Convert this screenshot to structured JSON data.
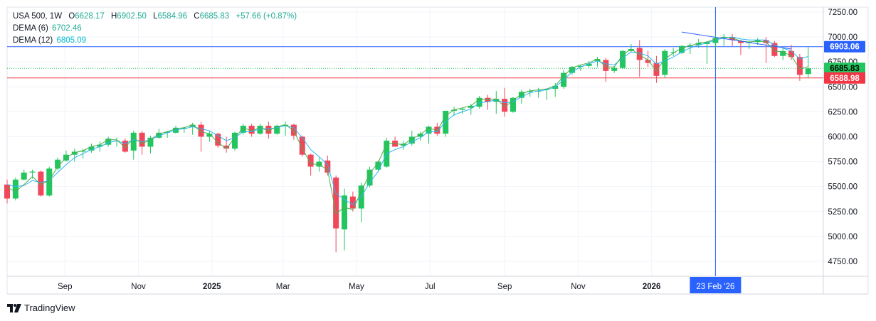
{
  "legend": {
    "symbol": "USA 500",
    "interval": "1W",
    "open_label": "O",
    "open": "6628.17",
    "high_label": "H",
    "high": "6902.50",
    "low_label": "L",
    "low": "6584.96",
    "close_label": "C",
    "close": "6685.83",
    "change": "+57.66 (+0.87%)",
    "dema6_label": "DEMA (6)",
    "dema6_value": "6702.46",
    "dema12_label": "DEMA (12)",
    "dema12_value": "6805.09"
  },
  "brand": {
    "name": "TradingView"
  },
  "colors": {
    "up": "#22c55e",
    "down": "#f0475a",
    "dema6": "#4caf50",
    "dema12": "#29b6f6",
    "hline_blue": "#2962ff",
    "hline_red": "#f23645",
    "trendline": "#2962ff"
  },
  "chart_data": {
    "type": "candlestick",
    "ylim": [
      4600,
      7300
    ],
    "y_ticks": [
      4750,
      5000,
      5250,
      5500,
      5750,
      6000,
      6250,
      6500,
      6750,
      7000,
      7250
    ],
    "y_tick_labels": [
      "4750.00",
      "5000.00",
      "5250.00",
      "5500.00",
      "5750.00",
      "6000.00",
      "6250.00",
      "6500.00",
      "6750.00",
      "7000.00",
      "7250.00"
    ],
    "x_ticks": [
      {
        "label": "Sep",
        "date": "2024-09-01",
        "bold": false
      },
      {
        "label": "Nov",
        "date": "2024-11-01",
        "bold": false
      },
      {
        "label": "2025",
        "date": "2025-01-01",
        "bold": true
      },
      {
        "label": "Mar",
        "date": "2025-03-01",
        "bold": false
      },
      {
        "label": "May",
        "date": "2025-05-01",
        "bold": false
      },
      {
        "label": "Jul",
        "date": "2025-07-01",
        "bold": false
      },
      {
        "label": "Sep",
        "date": "2025-09-01",
        "bold": false
      },
      {
        "label": "Nov",
        "date": "2025-11-01",
        "bold": false
      },
      {
        "label": "2026",
        "date": "2026-01-01",
        "bold": true
      }
    ],
    "first_candle_date": "2024-07-15",
    "candle_interval_days": 7,
    "candles": [
      [
        5520,
        5570,
        5330,
        5380
      ],
      [
        5380,
        5590,
        5360,
        5570
      ],
      [
        5570,
        5670,
        5560,
        5640
      ],
      [
        5640,
        5670,
        5580,
        5650
      ],
      [
        5650,
        5660,
        5400,
        5410
      ],
      [
        5410,
        5700,
        5400,
        5680
      ],
      [
        5680,
        5790,
        5660,
        5770
      ],
      [
        5760,
        5860,
        5750,
        5820
      ],
      [
        5820,
        5880,
        5750,
        5850
      ],
      [
        5850,
        5880,
        5780,
        5860
      ],
      [
        5860,
        5930,
        5840,
        5900
      ],
      [
        5900,
        5950,
        5850,
        5920
      ],
      [
        5920,
        6000,
        5900,
        5980
      ],
      [
        5960,
        5990,
        5900,
        5960
      ],
      [
        5960,
        5980,
        5840,
        5850
      ],
      [
        5860,
        6060,
        5770,
        6040
      ],
      [
        6040,
        6060,
        5820,
        5900
      ],
      [
        5900,
        6010,
        5830,
        5990
      ],
      [
        5990,
        6080,
        5980,
        6040
      ],
      [
        6040,
        6060,
        5990,
        6050
      ],
      [
        6040,
        6110,
        6030,
        6090
      ],
      [
        6080,
        6100,
        6040,
        6090
      ],
      [
        6100,
        6140,
        6020,
        6120
      ],
      [
        6120,
        6150,
        5850,
        6000
      ],
      [
        6000,
        6060,
        5950,
        6030
      ],
      [
        6030,
        6040,
        5890,
        5910
      ],
      [
        5910,
        6000,
        5840,
        5880
      ],
      [
        5880,
        6050,
        5860,
        6040
      ],
      [
        6040,
        6130,
        6020,
        6110
      ],
      [
        6110,
        6130,
        6000,
        6030
      ],
      [
        6030,
        6130,
        6020,
        6110
      ],
      [
        6110,
        6150,
        5980,
        6030
      ],
      [
        6030,
        6120,
        6020,
        6110
      ],
      [
        6110,
        6150,
        6010,
        6120
      ],
      [
        6120,
        6130,
        5970,
        6010
      ],
      [
        6000,
        6010,
        5800,
        5820
      ],
      [
        5820,
        5830,
        5610,
        5700
      ],
      [
        5700,
        5790,
        5650,
        5750
      ],
      [
        5760,
        5810,
        5610,
        5640
      ],
      [
        5590,
        5610,
        4840,
        5080
      ],
      [
        5070,
        5480,
        4860,
        5410
      ],
      [
        5400,
        5450,
        5250,
        5280
      ],
      [
        5280,
        5540,
        5140,
        5510
      ],
      [
        5510,
        5700,
        5490,
        5670
      ],
      [
        5670,
        5760,
        5660,
        5750
      ],
      [
        5700,
        5990,
        5690,
        5960
      ],
      [
        5960,
        6000,
        5900,
        5900
      ],
      [
        5910,
        5960,
        5870,
        5930
      ],
      [
        5930,
        6060,
        5910,
        6000
      ],
      [
        6000,
        6050,
        5960,
        6030
      ],
      [
        6030,
        6110,
        5930,
        6100
      ],
      [
        6100,
        6140,
        6010,
        6030
      ],
      [
        6030,
        6260,
        6000,
        6260
      ],
      [
        6260,
        6300,
        6210,
        6270
      ],
      [
        6270,
        6290,
        6230,
        6280
      ],
      [
        6290,
        6330,
        6220,
        6310
      ],
      [
        6300,
        6410,
        6280,
        6390
      ],
      [
        6390,
        6420,
        6270,
        6350
      ],
      [
        6350,
        6460,
        6230,
        6380
      ],
      [
        6380,
        6490,
        6200,
        6250
      ],
      [
        6250,
        6400,
        6240,
        6390
      ],
      [
        6390,
        6470,
        6330,
        6450
      ],
      [
        6450,
        6480,
        6400,
        6460
      ],
      [
        6460,
        6490,
        6390,
        6460
      ],
      [
        6470,
        6480,
        6370,
        6480
      ],
      [
        6480,
        6540,
        6400,
        6510
      ],
      [
        6500,
        6670,
        6480,
        6640
      ],
      [
        6640,
        6710,
        6620,
        6700
      ],
      [
        6700,
        6720,
        6660,
        6710
      ],
      [
        6710,
        6760,
        6690,
        6730
      ],
      [
        6760,
        6800,
        6700,
        6780
      ],
      [
        6770,
        6790,
        6550,
        6660
      ],
      [
        6660,
        6710,
        6640,
        6690
      ],
      [
        6690,
        6870,
        6680,
        6860
      ],
      [
        6860,
        6930,
        6850,
        6880
      ],
      [
        6890,
        6970,
        6600,
        6770
      ],
      [
        6770,
        6860,
        6700,
        6740
      ],
      [
        6740,
        6810,
        6540,
        6610
      ],
      [
        6620,
        6880,
        6590,
        6860
      ],
      [
        6850,
        6890,
        6810,
        6850
      ],
      [
        6840,
        6920,
        6830,
        6910
      ],
      [
        6910,
        6940,
        6830,
        6920
      ],
      [
        6920,
        6980,
        6890,
        6940
      ],
      [
        6930,
        6960,
        6730,
        6950
      ],
      [
        6940,
        7020,
        6890,
        6990
      ],
      [
        6990,
        7030,
        6910,
        7000
      ],
      [
        7000,
        7030,
        6910,
        6970
      ],
      [
        6960,
        6970,
        6820,
        6940
      ],
      [
        6940,
        6960,
        6880,
        6950
      ],
      [
        6950,
        6990,
        6920,
        6970
      ],
      [
        6970,
        7000,
        6740,
        6940
      ],
      [
        6940,
        6960,
        6800,
        6810
      ],
      [
        6810,
        6890,
        6770,
        6860
      ],
      [
        6860,
        6920,
        6770,
        6800
      ],
      [
        6800,
        6830,
        6560,
        6620
      ],
      [
        6628.17,
        6902.5,
        6584.96,
        6685.83
      ]
    ],
    "dema6": [
      5490,
      5450,
      5520,
      5600,
      5520,
      5560,
      5700,
      5790,
      5840,
      5860,
      5900,
      5920,
      5970,
      5970,
      5890,
      5990,
      5930,
      5970,
      6030,
      6050,
      6080,
      6090,
      6120,
      6050,
      6030,
      5940,
      5880,
      5990,
      6090,
      6060,
      6090,
      6060,
      6100,
      6120,
      6060,
      5880,
      5730,
      5720,
      5670,
      5230,
      5290,
      5270,
      5450,
      5630,
      5740,
      5930,
      5930,
      5920,
      5980,
      6020,
      6090,
      6060,
      6210,
      6270,
      6290,
      6310,
      6380,
      6370,
      6380,
      6300,
      6360,
      6430,
      6460,
      6470,
      6480,
      6510,
      6610,
      6690,
      6720,
      6740,
      6780,
      6700,
      6700,
      6820,
      6880,
      6820,
      6770,
      6660,
      6780,
      6840,
      6890,
      6910,
      6940,
      6950,
      6980,
      7000,
      6990,
      6960,
      6950,
      6960,
      6950,
      6860,
      6850,
      6810,
      6680,
      6702.46
    ],
    "dema12": [
      5520,
      5500,
      5510,
      5560,
      5540,
      5560,
      5640,
      5720,
      5790,
      5830,
      5870,
      5900,
      5940,
      5960,
      5930,
      5970,
      5950,
      5970,
      6010,
      6040,
      6070,
      6080,
      6100,
      6080,
      6060,
      6010,
      5960,
      5990,
      6050,
      6050,
      6080,
      6080,
      6090,
      6110,
      6090,
      5990,
      5870,
      5800,
      5720,
      5430,
      5370,
      5320,
      5400,
      5540,
      5650,
      5830,
      5870,
      5900,
      5950,
      5990,
      6050,
      6050,
      6150,
      6220,
      6250,
      6280,
      6340,
      6350,
      6370,
      6340,
      6350,
      6400,
      6440,
      6460,
      6470,
      6500,
      6570,
      6650,
      6700,
      6730,
      6760,
      6730,
      6720,
      6790,
      6850,
      6840,
      6810,
      6730,
      6760,
      6800,
      6850,
      6890,
      6920,
      6940,
      6970,
      6990,
      7000,
      6980,
      6970,
      6970,
      6970,
      6920,
      6890,
      6860,
      6780,
      6805.09
    ],
    "hlines": [
      {
        "value": 6903.06,
        "label": "6903.06",
        "color": "#2962ff"
      },
      {
        "value": 6588.98,
        "label": "6588.98",
        "color": "#f23645"
      }
    ],
    "last_price": {
      "value": 6685.83,
      "label": "6685.83"
    },
    "trendline": {
      "x1": "2026-01-26",
      "y1": 7050,
      "x2": "2026-04-27",
      "y2": 6880
    },
    "crosshair": {
      "date": "2026-02-23",
      "label": "23 Feb '26"
    }
  }
}
